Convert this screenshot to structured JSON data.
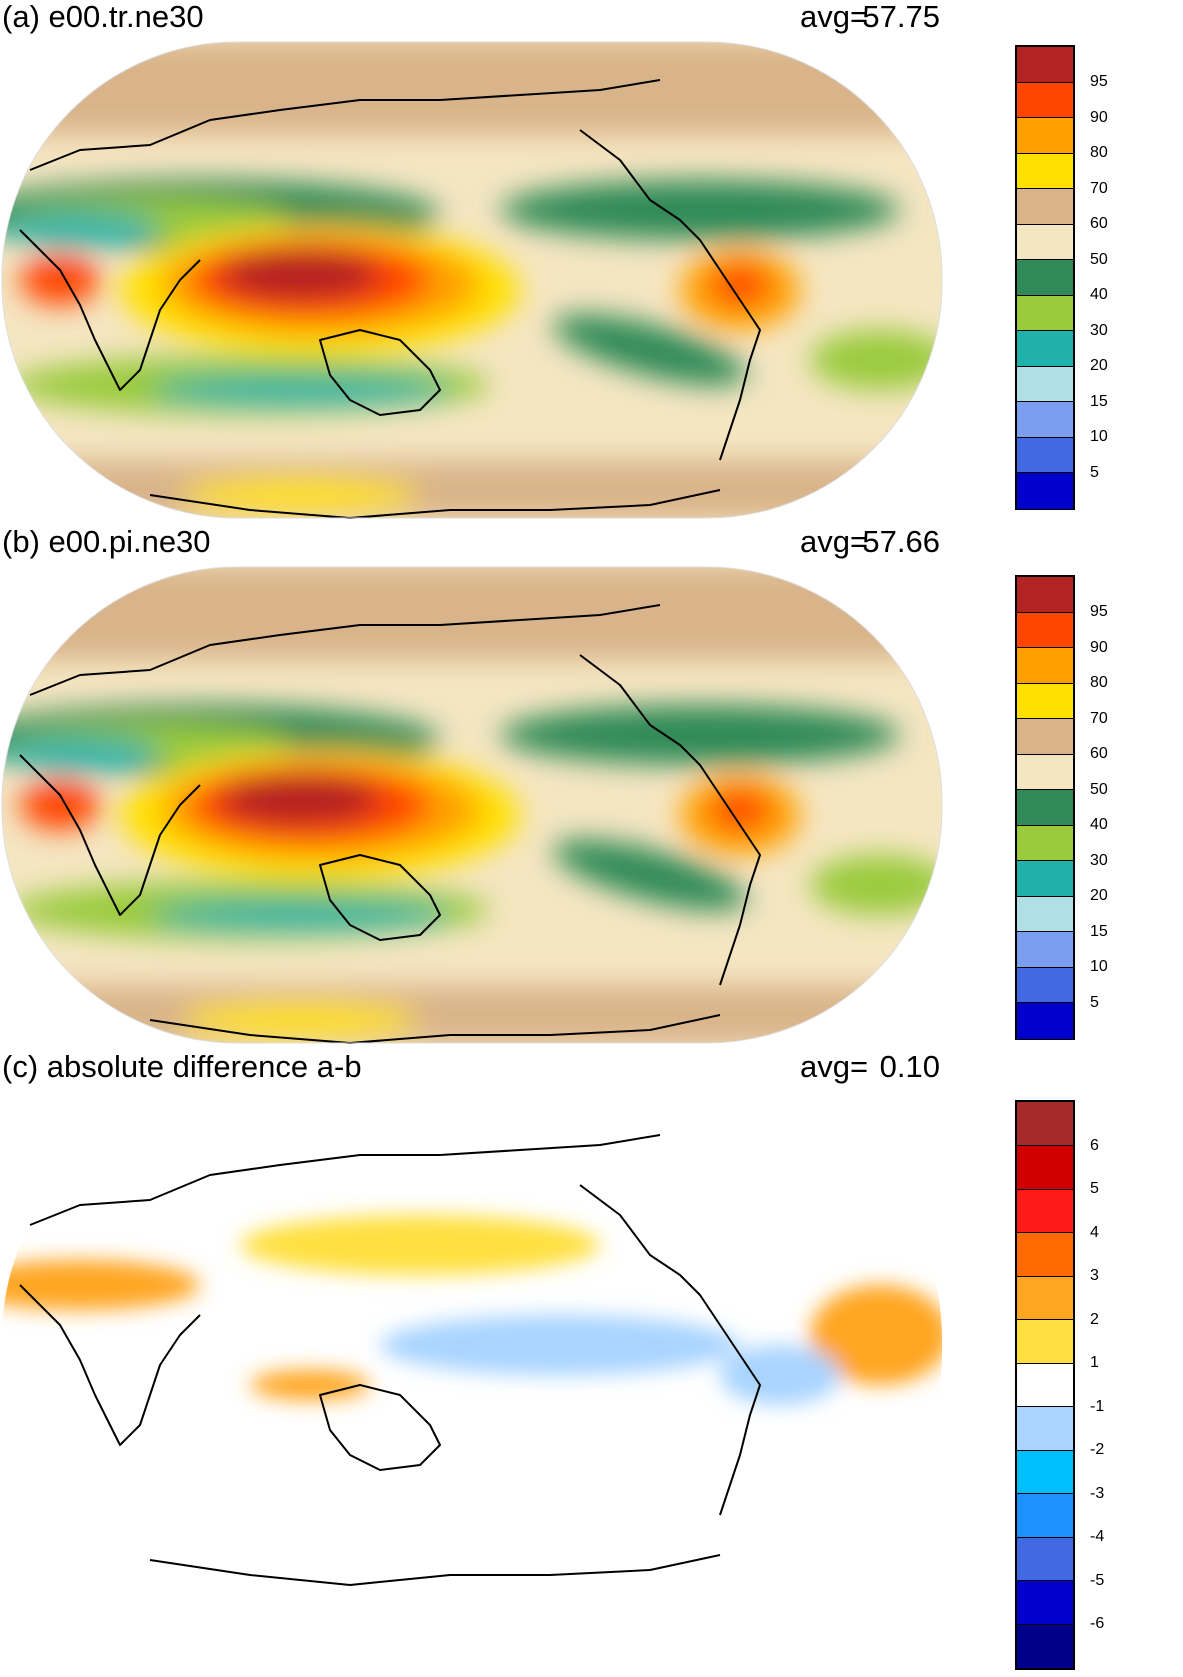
{
  "chart_data": [
    {
      "type": "heatmap",
      "panel_label": "(a) e00.tr.ne30",
      "avg_label": "avg=",
      "avg_value": "57.75",
      "projection": "robinson",
      "colorbar": {
        "colors": [
          "#b22424",
          "#ff4500",
          "#ffa000",
          "#ffe000",
          "#d9b48a",
          "#f5e6c2",
          "#2f8a57",
          "#9acb3c",
          "#20b2aa",
          "#b0e0e6",
          "#7b9ff0",
          "#4169e1",
          "#0000cd"
        ],
        "ticks": [
          "95",
          "90",
          "80",
          "70",
          "60",
          "50",
          "40",
          "30",
          "20",
          "15",
          "10",
          "5"
        ]
      }
    },
    {
      "type": "heatmap",
      "panel_label": "(b) e00.pi.ne30",
      "avg_label": "avg=",
      "avg_value": "57.66",
      "projection": "robinson",
      "colorbar": {
        "colors": [
          "#b22424",
          "#ff4500",
          "#ffa000",
          "#ffe000",
          "#d9b48a",
          "#f5e6c2",
          "#2f8a57",
          "#9acb3c",
          "#20b2aa",
          "#b0e0e6",
          "#7b9ff0",
          "#4169e1",
          "#0000cd"
        ],
        "ticks": [
          "95",
          "90",
          "80",
          "70",
          "60",
          "50",
          "40",
          "30",
          "20",
          "15",
          "10",
          "5"
        ]
      }
    },
    {
      "type": "heatmap",
      "panel_label": "(c) absolute difference a-b",
      "avg_label": "avg=",
      "avg_value": "0.10",
      "projection": "robinson",
      "colorbar": {
        "colors": [
          "#a52a2a",
          "#d00000",
          "#ff1a1a",
          "#ff6a00",
          "#ffa620",
          "#ffe040",
          "#ffffff",
          "#a8d4ff",
          "#00bfff",
          "#1e90ff",
          "#4169e1",
          "#0000cd",
          "#00008b"
        ],
        "ticks": [
          "6",
          "5",
          "4",
          "3",
          "2",
          "1",
          "-1",
          "-2",
          "-3",
          "-4",
          "-5",
          "-6"
        ]
      }
    }
  ]
}
